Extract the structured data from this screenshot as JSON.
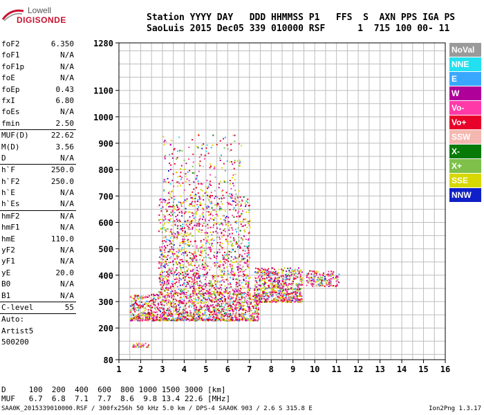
{
  "logo": {
    "line1": "Lowell",
    "line2": "DIGISONDE"
  },
  "header": {
    "line1": "Station YYYY DAY   DDD HHMMSS P1   FFS  S  AXN PPS IGA PS",
    "line2": "SaoLuis 2015 Dec05 339 010000 RSF      1  715 100 00- 11"
  },
  "params": [
    {
      "label": "foF2",
      "value": "6.350"
    },
    {
      "label": "foF1",
      "value": "N/A"
    },
    {
      "label": "foF1p",
      "value": "N/A"
    },
    {
      "label": "foE",
      "value": "N/A"
    },
    {
      "label": "foEp",
      "value": "0.43"
    },
    {
      "label": "fxI",
      "value": "6.80"
    },
    {
      "label": "foEs",
      "value": "N/A"
    },
    {
      "label": "fmin",
      "value": "2.50",
      "sep": true
    },
    {
      "label": "MUF(D)",
      "value": "22.62"
    },
    {
      "label": "M(D)",
      "value": "3.56"
    },
    {
      "label": "D",
      "value": "N/A",
      "sep": true
    },
    {
      "label": "h`F",
      "value": "250.0"
    },
    {
      "label": "h`F2",
      "value": "250.0"
    },
    {
      "label": "h`E",
      "value": "N/A"
    },
    {
      "label": "h`Es",
      "value": "N/A",
      "sep": true
    },
    {
      "label": "hmF2",
      "value": "N/A"
    },
    {
      "label": "hmF1",
      "value": "N/A"
    },
    {
      "label": "hmE",
      "value": "110.0"
    },
    {
      "label": "yF2",
      "value": "N/A"
    },
    {
      "label": "yF1",
      "value": "N/A"
    },
    {
      "label": "yE",
      "value": "20.0"
    },
    {
      "label": "B0",
      "value": "N/A"
    },
    {
      "label": "B1",
      "value": "N/A",
      "sep": true
    },
    {
      "label": "C-level",
      "value": "55",
      "sep": true
    },
    {
      "label": "Auto:",
      "value": ""
    },
    {
      "label": "Artist5",
      "value": ""
    },
    {
      "label": "500200",
      "value": ""
    }
  ],
  "legend": [
    {
      "label": "NoVal",
      "color": "#9a9a9a"
    },
    {
      "label": "NNE",
      "color": "#22e0f0"
    },
    {
      "label": "E",
      "color": "#3aa7ff"
    },
    {
      "label": "W",
      "color": "#b0009a"
    },
    {
      "label": "Vo-",
      "color": "#ff3aa8"
    },
    {
      "label": "Vo+",
      "color": "#e8002a"
    },
    {
      "label": "SSW",
      "color": "#f4b8b0"
    },
    {
      "label": "X-",
      "color": "#087a08"
    },
    {
      "label": "X+",
      "color": "#7ec04a"
    },
    {
      "label": "SSE",
      "color": "#d8d800"
    },
    {
      "label": "NNW",
      "color": "#1020c8"
    }
  ],
  "bottom": {
    "line1": "D     100  200  400  600  800 1000 1500 3000 [km]",
    "line2": "MUF   6.7  6.8  7.1  7.7  8.6  9.8 13.4 22.6 [MHz]"
  },
  "footer": "SAA0K_2015339010000.RSF / 300fx256h 50 kHz 5.0 km / DPS-4 SAA0K 903 / 2.6 S 315.8 E",
  "version": "Ion2Png 1.3.17",
  "chart_data": {
    "type": "scatter",
    "title": "",
    "xlabel": "",
    "ylabel": "",
    "xlim": [
      1,
      16
    ],
    "ylim": [
      80,
      1280
    ],
    "x_ticks": [
      1,
      2,
      3,
      4,
      5,
      6,
      7,
      8,
      9,
      10,
      11,
      12,
      13,
      14,
      15,
      16
    ],
    "y_ticks": [
      80,
      200,
      300,
      400,
      500,
      600,
      700,
      800,
      900,
      1000,
      1100,
      1280
    ],
    "grid": true,
    "clusters": [
      {
        "name": "F-trace",
        "xmin": 1.5,
        "xmax": 7.4,
        "ymin": 230,
        "ymax": 330,
        "density": 1400
      },
      {
        "name": "F-trace-b",
        "xmin": 7.2,
        "xmax": 9.4,
        "ymin": 300,
        "ymax": 430,
        "density": 700
      },
      {
        "name": "spread-F",
        "xmin": 2.8,
        "xmax": 7.0,
        "ymin": 330,
        "ymax": 700,
        "density": 1500
      },
      {
        "name": "spread-F-high",
        "xmin": 3.0,
        "xmax": 6.6,
        "ymin": 700,
        "ymax": 940,
        "density": 220
      },
      {
        "name": "tail",
        "xmin": 9.6,
        "xmax": 11.1,
        "ymin": 360,
        "ymax": 420,
        "density": 160
      },
      {
        "name": "low-echo",
        "xmin": 1.6,
        "xmax": 2.4,
        "ymin": 130,
        "ymax": 145,
        "density": 40
      }
    ]
  }
}
